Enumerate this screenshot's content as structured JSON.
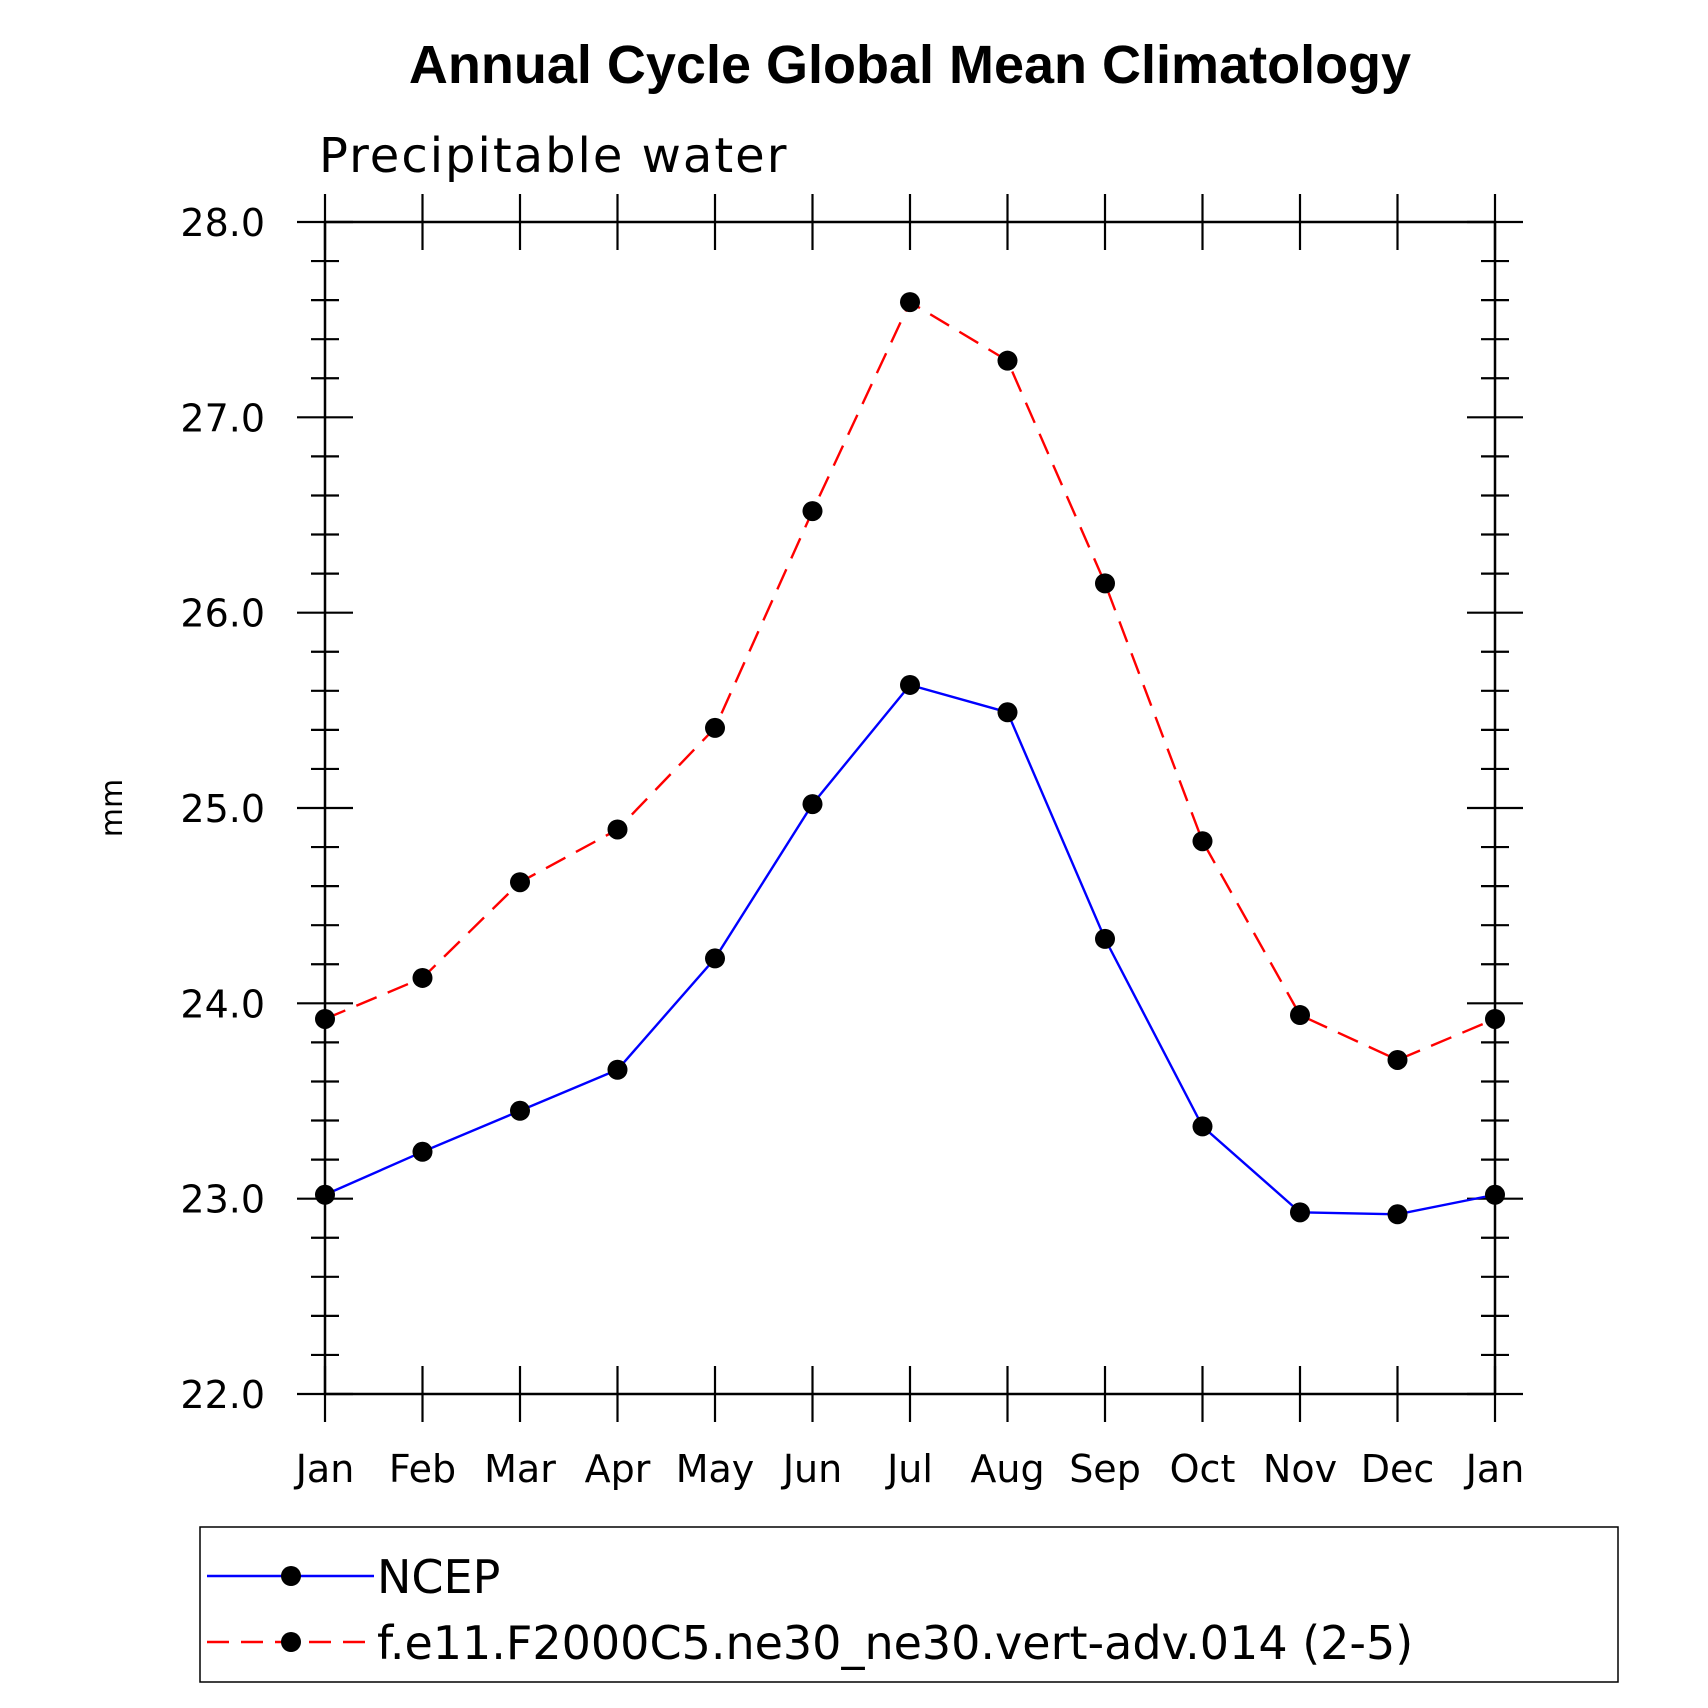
{
  "chart_data": {
    "type": "line",
    "title": "Annual Cycle Global Mean Climatology",
    "subtitle": "Precipitable water",
    "ylabel": "mm",
    "xlabel": "",
    "categories": [
      "Jan",
      "Feb",
      "Mar",
      "Apr",
      "May",
      "Jun",
      "Jul",
      "Aug",
      "Sep",
      "Oct",
      "Nov",
      "Dec",
      "Jan"
    ],
    "ylim": [
      22.0,
      28.0
    ],
    "yticks": [
      "22.0",
      "23.0",
      "24.0",
      "25.0",
      "26.0",
      "27.0",
      "28.0"
    ],
    "grid": false,
    "legend_position": "bottom",
    "series": [
      {
        "name": "NCEP",
        "color": "#0000ff",
        "dash": "solid",
        "marker": "filled-circle",
        "values": [
          23.02,
          23.24,
          23.45,
          23.66,
          24.23,
          25.02,
          25.63,
          25.49,
          24.33,
          23.37,
          22.93,
          22.92,
          23.02
        ]
      },
      {
        "name": "f.e11.F2000C5.ne30_ne30.vert-adv.014 (2-5)",
        "color": "#ff0000",
        "dash": "dashed",
        "marker": "filled-circle",
        "values": [
          23.92,
          24.13,
          24.62,
          24.89,
          25.41,
          26.52,
          27.59,
          27.29,
          26.15,
          24.83,
          23.94,
          23.71,
          23.92
        ]
      }
    ]
  }
}
